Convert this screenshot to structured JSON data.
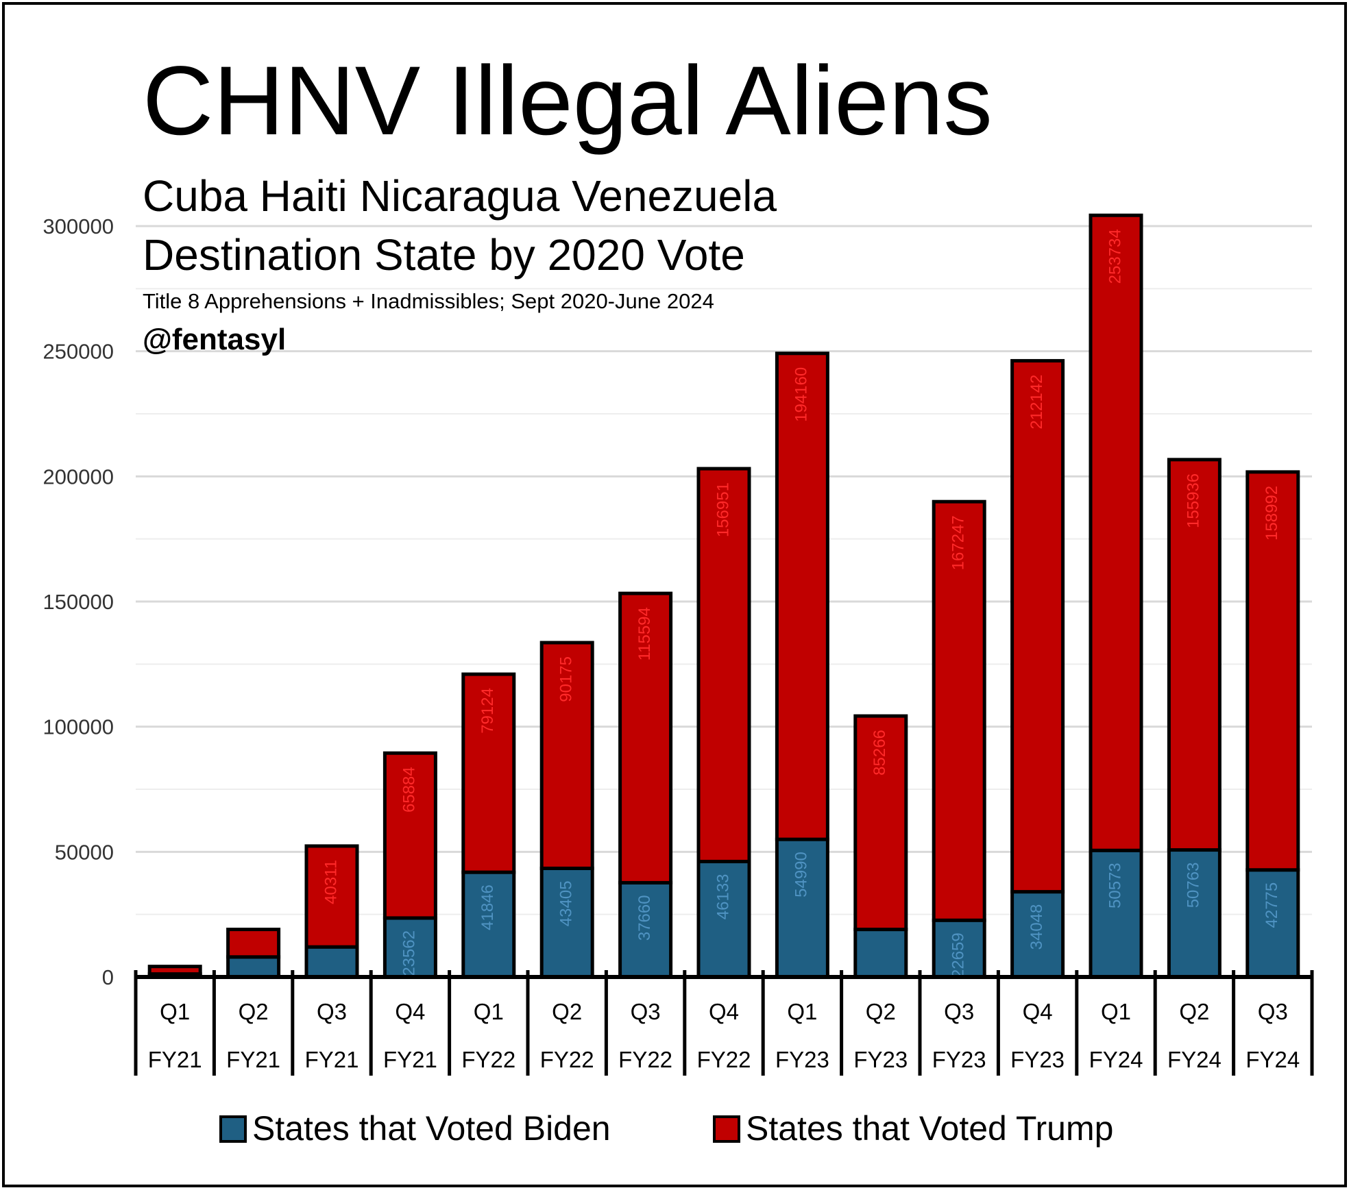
{
  "title": "CHNV Illegal Aliens",
  "subtitle": "Cuba Haiti Nicaragua Venezuela",
  "subtitle2": "Destination State by 2020 Vote",
  "note": "Title 8 Apprehensions + Inadmissibles; Sept 2020-June 2024",
  "handle": "@fentasyl",
  "colors": {
    "biden": "#1f5f83",
    "trump": "#c00000",
    "biden_label": "#4f93c2",
    "trump_label": "#ff2a2a"
  },
  "chart_data": {
    "type": "bar",
    "stacked": true,
    "categories": [
      [
        "Q1",
        "FY21"
      ],
      [
        "Q2",
        "FY21"
      ],
      [
        "Q3",
        "FY21"
      ],
      [
        "Q4",
        "FY21"
      ],
      [
        "Q1",
        "FY22"
      ],
      [
        "Q2",
        "FY22"
      ],
      [
        "Q3",
        "FY22"
      ],
      [
        "Q4",
        "FY22"
      ],
      [
        "Q1",
        "FY23"
      ],
      [
        "Q2",
        "FY23"
      ],
      [
        "Q3",
        "FY23"
      ],
      [
        "Q4",
        "FY23"
      ],
      [
        "Q1",
        "FY24"
      ],
      [
        "Q2",
        "FY24"
      ],
      [
        "Q3",
        "FY24"
      ]
    ],
    "series": [
      {
        "name": "States that Voted Biden",
        "values": [
          1200,
          8000,
          12000,
          23562,
          41846,
          43405,
          37660,
          46133,
          54990,
          19000,
          22659,
          34048,
          50573,
          50763,
          42775
        ],
        "labels": [
          "",
          "",
          "",
          "23562",
          "41846",
          "43405",
          "37660",
          "46133",
          "54990",
          "",
          "22659",
          "34048",
          "50573",
          "50763",
          "42775"
        ]
      },
      {
        "name": "States that Voted Trump",
        "values": [
          3000,
          11000,
          40311,
          65884,
          79124,
          90175,
          115594,
          156951,
          194160,
          85266,
          167247,
          212142,
          253734,
          155936,
          158992
        ],
        "labels": [
          "",
          "",
          "40311",
          "65884",
          "79124",
          "90175",
          "115594",
          "156951",
          "194160",
          "85266",
          "167247",
          "212142",
          "253734",
          "155936",
          "158992"
        ]
      }
    ],
    "yticks": [
      "300000",
      "250000",
      "200000",
      "150000",
      "100000",
      "50000",
      "0"
    ],
    "ylim": [
      0,
      300000
    ],
    "grid": true,
    "legend_position": "bottom"
  }
}
